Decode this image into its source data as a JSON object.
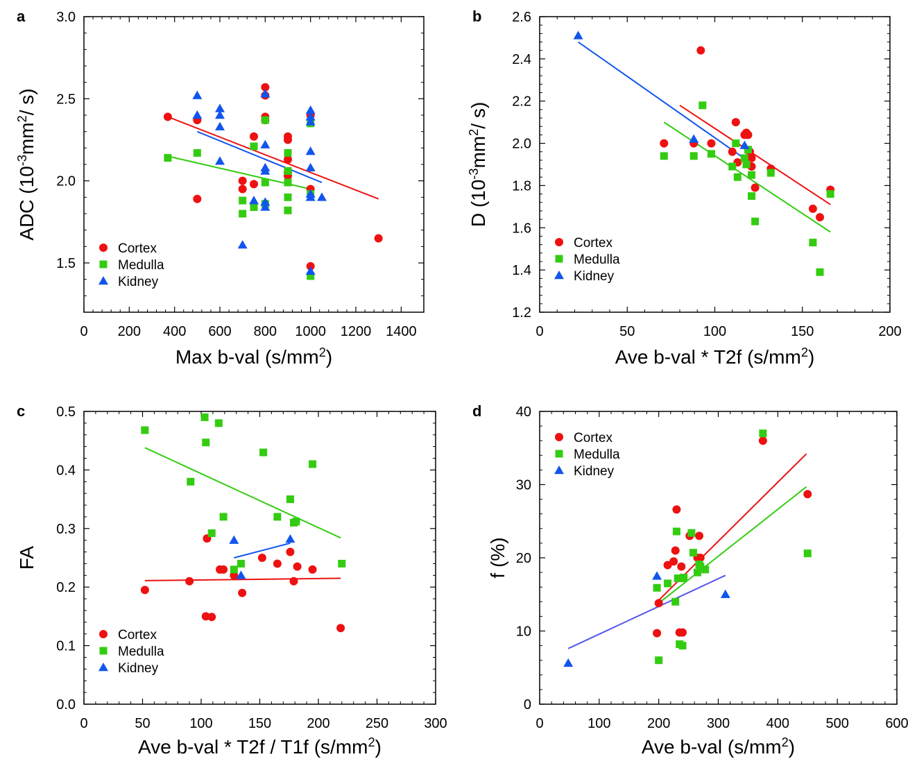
{
  "colors": {
    "cortex": "#ee1111",
    "medulla": "#33cc11",
    "kidney": "#1155ee",
    "kidney_fit_d": "#5555ee"
  },
  "chart_data": [
    {
      "panel_letter": "a",
      "type": "scatter",
      "xlabel": "Max b-val (s/mm²)",
      "ylabel": "ADC (10⁻³mm²/ s)",
      "xlim": [
        0,
        1500
      ],
      "ylim": [
        1.2,
        3.0
      ],
      "xticks": [
        0,
        200,
        400,
        600,
        800,
        1000,
        1200,
        1400
      ],
      "yticks": [
        1.5,
        2.0,
        2.5,
        3.0
      ],
      "ytick_decimals": 1,
      "grid": false,
      "legend_position": "bottom-left",
      "series": [
        {
          "name": "Cortex",
          "marker": "circle",
          "points": [
            [
              370,
              2.39
            ],
            [
              500,
              2.37
            ],
            [
              500,
              1.89
            ],
            [
              700,
              2.0
            ],
            [
              700,
              1.95
            ],
            [
              750,
              2.27
            ],
            [
              750,
              1.98
            ],
            [
              800,
              2.57
            ],
            [
              800,
              2.52
            ],
            [
              800,
              2.39
            ],
            [
              800,
              2.37
            ],
            [
              900,
              2.27
            ],
            [
              900,
              2.25
            ],
            [
              900,
              2.13
            ],
            [
              900,
              2.05
            ],
            [
              900,
              2.03
            ],
            [
              1000,
              2.4
            ],
            [
              1000,
              1.95
            ],
            [
              1000,
              1.48
            ],
            [
              1300,
              1.65
            ]
          ],
          "fit": [
            [
              370,
              2.39
            ],
            [
              1300,
              1.89
            ]
          ]
        },
        {
          "name": "Medulla",
          "marker": "square",
          "points": [
            [
              370,
              2.14
            ],
            [
              500,
              2.17
            ],
            [
              700,
              1.88
            ],
            [
              700,
              1.8
            ],
            [
              750,
              2.21
            ],
            [
              750,
              1.84
            ],
            [
              800,
              2.37
            ],
            [
              800,
              1.99
            ],
            [
              800,
              1.86
            ],
            [
              900,
              2.17
            ],
            [
              900,
              2.06
            ],
            [
              900,
              1.99
            ],
            [
              900,
              1.9
            ],
            [
              900,
              1.82
            ],
            [
              1000,
              2.35
            ],
            [
              1000,
              1.92
            ],
            [
              1000,
              1.42
            ]
          ],
          "fit": [
            [
              370,
              2.15
            ],
            [
              1000,
              1.95
            ]
          ]
        },
        {
          "name": "Kidney",
          "marker": "triangle",
          "points": [
            [
              500,
              2.52
            ],
            [
              500,
              2.4
            ],
            [
              600,
              2.44
            ],
            [
              600,
              2.4
            ],
            [
              600,
              2.33
            ],
            [
              600,
              2.12
            ],
            [
              700,
              1.61
            ],
            [
              750,
              1.88
            ],
            [
              800,
              2.53
            ],
            [
              800,
              2.22
            ],
            [
              800,
              2.08
            ],
            [
              800,
              2.06
            ],
            [
              800,
              1.87
            ],
            [
              800,
              1.84
            ],
            [
              1000,
              2.43
            ],
            [
              1000,
              2.39
            ],
            [
              1000,
              2.36
            ],
            [
              1000,
              2.18
            ],
            [
              1000,
              2.08
            ],
            [
              1000,
              1.92
            ],
            [
              1000,
              1.9
            ],
            [
              1000,
              1.45
            ],
            [
              1050,
              1.9
            ]
          ],
          "fit": [
            [
              500,
              2.3
            ],
            [
              1050,
              1.99
            ]
          ]
        }
      ]
    },
    {
      "panel_letter": "b",
      "type": "scatter",
      "xlabel": "Ave b-val * T2f (s/mm²)",
      "ylabel": "D (10⁻³mm²/ s)",
      "xlim": [
        0,
        200
      ],
      "ylim": [
        1.2,
        2.6
      ],
      "xticks": [
        0,
        50,
        100,
        150,
        200
      ],
      "yticks": [
        1.2,
        1.4,
        1.6,
        1.8,
        2.0,
        2.2,
        2.4,
        2.6
      ],
      "ytick_decimals": 1,
      "grid": false,
      "legend_position": "bottom-left",
      "series": [
        {
          "name": "Cortex",
          "marker": "circle",
          "points": [
            [
              71,
              2.0
            ],
            [
              88,
              2.0
            ],
            [
              92,
              2.44
            ],
            [
              98,
              2.0
            ],
            [
              110,
              1.96
            ],
            [
              112,
              2.1
            ],
            [
              113,
              1.91
            ],
            [
              117,
              2.04
            ],
            [
              118,
              2.05
            ],
            [
              119,
              2.04
            ],
            [
              120,
              1.96
            ],
            [
              121,
              1.93
            ],
            [
              121,
              1.89
            ],
            [
              123,
              1.79
            ],
            [
              132,
              1.88
            ],
            [
              156,
              1.69
            ],
            [
              160,
              1.65
            ],
            [
              166,
              1.78
            ]
          ],
          "fit": [
            [
              80,
              2.18
            ],
            [
              166,
              1.71
            ]
          ]
        },
        {
          "name": "Medulla",
          "marker": "square",
          "points": [
            [
              71,
              1.94
            ],
            [
              88,
              1.94
            ],
            [
              93,
              2.18
            ],
            [
              98,
              1.95
            ],
            [
              110,
              1.89
            ],
            [
              112,
              2.0
            ],
            [
              113,
              1.84
            ],
            [
              117,
              1.93
            ],
            [
              118,
              1.9
            ],
            [
              119,
              1.97
            ],
            [
              121,
              1.75
            ],
            [
              121,
              1.85
            ],
            [
              123,
              1.63
            ],
            [
              132,
              1.86
            ],
            [
              156,
              1.53
            ],
            [
              160,
              1.39
            ],
            [
              166,
              1.76
            ]
          ],
          "fit": [
            [
              71,
              2.1
            ],
            [
              166,
              1.58
            ]
          ]
        },
        {
          "name": "Kidney",
          "marker": "triangle",
          "points": [
            [
              22,
              2.51
            ],
            [
              88,
              2.02
            ],
            [
              117,
              1.99
            ]
          ],
          "fit": [
            [
              22,
              2.48
            ],
            [
              120,
              1.91
            ]
          ]
        }
      ]
    },
    {
      "panel_letter": "c",
      "type": "scatter",
      "xlabel": "Ave b-val * T2f / T1f (s/mm²)",
      "ylabel": "FA",
      "xlim": [
        0,
        300
      ],
      "ylim": [
        0.0,
        0.5
      ],
      "xticks": [
        0,
        50,
        100,
        150,
        200,
        250,
        300
      ],
      "yticks": [
        0.0,
        0.1,
        0.2,
        0.3,
        0.4,
        0.5
      ],
      "ytick_decimals": 1,
      "grid": false,
      "legend_position": "bottom-left",
      "series": [
        {
          "name": "Cortex",
          "marker": "circle",
          "points": [
            [
              52,
              0.195
            ],
            [
              90,
              0.21
            ],
            [
              104,
              0.15
            ],
            [
              105,
              0.283
            ],
            [
              109,
              0.149
            ],
            [
              116,
              0.23
            ],
            [
              119,
              0.23
            ],
            [
              128,
              0.22
            ],
            [
              135,
              0.19
            ],
            [
              152,
              0.25
            ],
            [
              165,
              0.24
            ],
            [
              176,
              0.26
            ],
            [
              179,
              0.21
            ],
            [
              182,
              0.235
            ],
            [
              195,
              0.23
            ],
            [
              219,
              0.13
            ]
          ],
          "fit": [
            [
              52,
              0.211
            ],
            [
              219,
              0.215
            ]
          ]
        },
        {
          "name": "Medulla",
          "marker": "square",
          "points": [
            [
              52,
              0.468
            ],
            [
              91,
              0.38
            ],
            [
              103,
              0.49
            ],
            [
              104,
              0.447
            ],
            [
              109,
              0.292
            ],
            [
              115,
              0.48
            ],
            [
              119,
              0.32
            ],
            [
              128,
              0.23
            ],
            [
              134,
              0.24
            ],
            [
              153,
              0.43
            ],
            [
              165,
              0.32
            ],
            [
              176,
              0.35
            ],
            [
              179,
              0.31
            ],
            [
              181,
              0.312
            ],
            [
              195,
              0.41
            ],
            [
              220,
              0.24
            ]
          ],
          "fit": [
            [
              52,
              0.438
            ],
            [
              219,
              0.284
            ]
          ]
        },
        {
          "name": "Kidney",
          "marker": "triangle",
          "points": [
            [
              128,
              0.28
            ],
            [
              134,
              0.22
            ],
            [
              176,
              0.282
            ]
          ],
          "fit": [
            [
              128,
              0.25
            ],
            [
              176,
              0.275
            ]
          ]
        }
      ]
    },
    {
      "panel_letter": "d",
      "type": "scatter",
      "xlabel": "Ave b-val (s/mm²)",
      "ylabel": "f (%)",
      "xlim": [
        0,
        600
      ],
      "ylim": [
        0,
        40
      ],
      "xticks": [
        0,
        100,
        200,
        300,
        400,
        500,
        600
      ],
      "yticks": [
        0,
        10,
        20,
        30,
        40
      ],
      "ytick_decimals": 0,
      "grid": false,
      "legend_position": "top-left",
      "series": [
        {
          "name": "Cortex",
          "marker": "circle",
          "points": [
            [
              197,
              9.7
            ],
            [
              200,
              13.8
            ],
            [
              215,
              19
            ],
            [
              225,
              19.5
            ],
            [
              228,
              21
            ],
            [
              230,
              26.6
            ],
            [
              235,
              9.8
            ],
            [
              238,
              18.8
            ],
            [
              240,
              9.8
            ],
            [
              252,
              23
            ],
            [
              265,
              20
            ],
            [
              268,
              23
            ],
            [
              270,
              20
            ],
            [
              375,
              36
            ],
            [
              450,
              28.7
            ]
          ],
          "fit": [
            [
              200,
              14.2
            ],
            [
              448,
              34.2
            ]
          ]
        },
        {
          "name": "Medulla",
          "marker": "square",
          "points": [
            [
              197,
              15.9
            ],
            [
              200,
              6
            ],
            [
              215,
              16.5
            ],
            [
              228,
              14
            ],
            [
              230,
              23.6
            ],
            [
              232,
              17.2
            ],
            [
              235,
              8.2
            ],
            [
              238,
              17.2
            ],
            [
              240,
              8
            ],
            [
              242,
              17.3
            ],
            [
              255,
              23.4
            ],
            [
              258,
              20.7
            ],
            [
              265,
              18
            ],
            [
              268,
              19.1
            ],
            [
              270,
              18.8
            ],
            [
              278,
              18.4
            ],
            [
              375,
              37
            ],
            [
              450,
              20.6
            ]
          ],
          "fit": [
            [
              200,
              13.8
            ],
            [
              448,
              29.7
            ]
          ]
        },
        {
          "name": "Kidney",
          "marker": "triangle",
          "points": [
            [
              48,
              5.6
            ],
            [
              197,
              17.5
            ],
            [
              312,
              15
            ]
          ],
          "fit": [
            [
              48,
              7.6
            ],
            [
              312,
              17.6
            ]
          ]
        }
      ]
    }
  ]
}
